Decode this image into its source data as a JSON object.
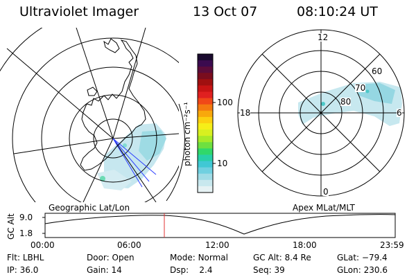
{
  "header": {
    "title": "Ultraviolet Imager",
    "date": "13 Oct 07",
    "time": "08:10:24 UT"
  },
  "colorbar": {
    "unit_label": "photon cm⁻²s⁻¹",
    "tick_labels": [
      "100",
      "10"
    ],
    "colors": [
      "#1a0a2e",
      "#3b0b4f",
      "#5c0c3a",
      "#7a0d1e",
      "#a01010",
      "#c81414",
      "#e02020",
      "#f04818",
      "#f47a10",
      "#f8a80c",
      "#fcd010",
      "#f6ee18",
      "#d8f020",
      "#a8ea28",
      "#6ee040",
      "#30d86a",
      "#28d0a8",
      "#40c8d4",
      "#70d0e0",
      "#a0dce6",
      "#c8e8ee",
      "#e6f2f4"
    ]
  },
  "geo_panel": {
    "label": "Geographic Lat/Lon"
  },
  "mag_panel": {
    "label": "Apex MLat/MLT",
    "mlt_labels": {
      "top": "12",
      "left": "18",
      "right": "6",
      "bottom": "0"
    },
    "lat_labels": [
      "60",
      "70",
      "80"
    ]
  },
  "timeline": {
    "ylabel": "GC Alt",
    "y_ticks": [
      "9.0",
      "1.8"
    ],
    "x_ticks": [
      "00:00",
      "06:00",
      "12:00",
      "18:00",
      "23:59"
    ],
    "current_time_fraction": 0.3406
  },
  "info": {
    "filter": {
      "label": "Flt:",
      "value": "LBHL"
    },
    "door": {
      "label": "Door:",
      "value": "Open"
    },
    "mode": {
      "label": "Mode:",
      "value": "Normal"
    },
    "gc_alt": {
      "label": "GC Alt:",
      "value": "8.4 Re"
    },
    "glat": {
      "label": "GLat:",
      "value": "−79.4"
    },
    "ip": {
      "label": "IP:",
      "value": "36.0"
    },
    "gain": {
      "label": "Gain:",
      "value": "14"
    },
    "dsp": {
      "label": "Dsp:",
      "value": "2.4"
    },
    "seq": {
      "label": "Seq:",
      "value": "39"
    },
    "glon": {
      "label": "GLon:",
      "value": "230.6"
    }
  }
}
